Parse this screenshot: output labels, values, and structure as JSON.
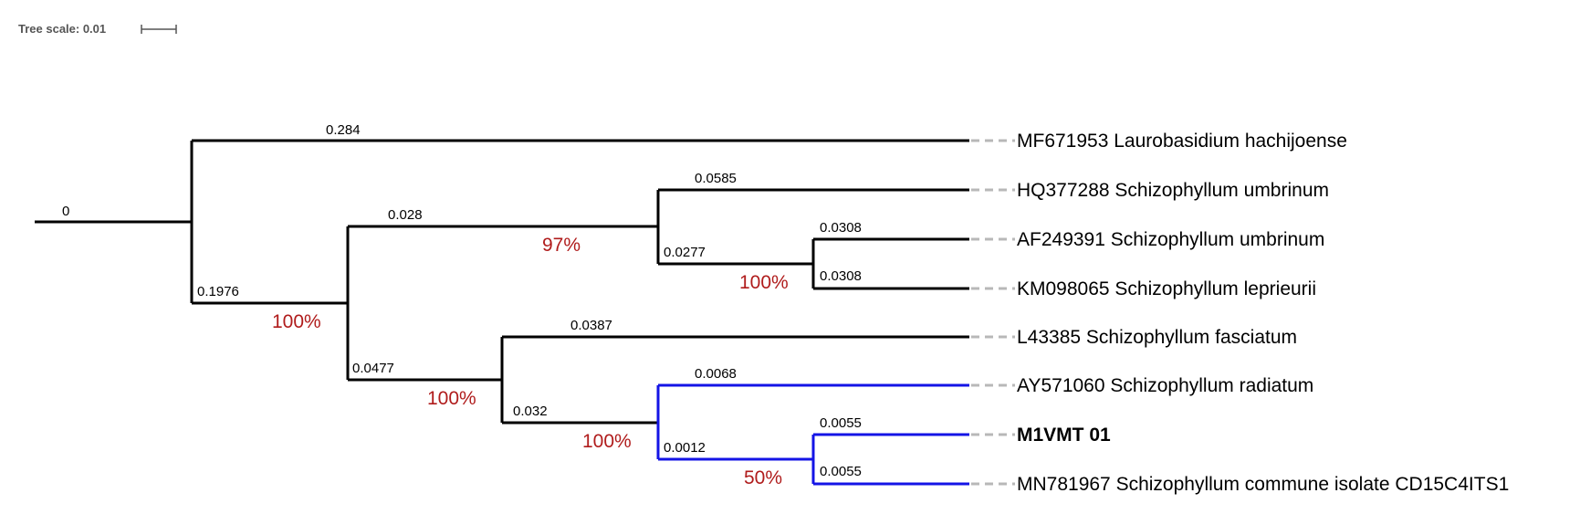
{
  "scale": {
    "label": "Tree scale: 0.01"
  },
  "colors": {
    "branch": "#000000",
    "highlight": "#1414e6",
    "bootstrap": "#b01c1c",
    "leader": "#b8b8b8"
  },
  "leaves": [
    {
      "name": "MF671953 Laurobasidium hachijoense"
    },
    {
      "name": "HQ377288 Schizophyllum umbrinum"
    },
    {
      "name": "AF249391 Schizophyllum umbrinum"
    },
    {
      "name": "KM098065 Schizophyllum leprieurii"
    },
    {
      "name": "L43385 Schizophyllum fasciatum"
    },
    {
      "name": "AY571060 Schizophyllum radiatum"
    },
    {
      "name": "M1VMT 01"
    },
    {
      "name": "MN781967 Schizophyllum commune isolate CD15C4ITS1"
    }
  ],
  "branch_lengths": {
    "root": "0",
    "laurobasidium": "0.284",
    "schizophyllum_clade": "0.1976",
    "umbrinum_group": "0.028",
    "hq377288": "0.0585",
    "af_km_pair": "0.0277",
    "af249391": "0.0308",
    "km098065": "0.0308",
    "lower_group": "0.0477",
    "l43385": "0.0387",
    "commune_group": "0.032",
    "ay571060": "0.0068",
    "m1_mn_pair": "0.0012",
    "m1vmt01": "0.0055",
    "mn781967": "0.0055"
  },
  "bootstrap": {
    "schizophyllum_clade": "100%",
    "umbrinum_group": "97%",
    "af_km_pair": "100%",
    "lower_group": "100%",
    "commune_group": "100%",
    "m1_mn_pair": "50%"
  }
}
